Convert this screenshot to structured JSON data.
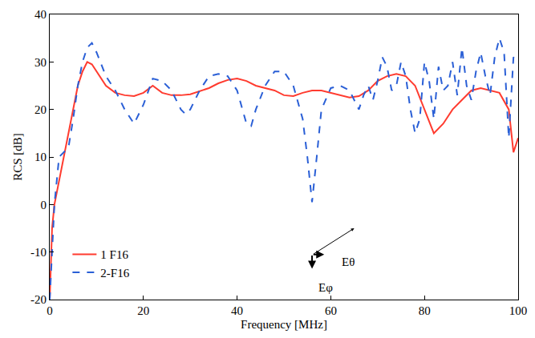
{
  "chart_data": {
    "type": "line",
    "x_label": "Frequency [MHz]",
    "y_label": "RCS [dB]",
    "xlim": [
      0,
      100
    ],
    "xticks": [
      0,
      20,
      40,
      60,
      80,
      100
    ],
    "ylim": [
      -20,
      40
    ],
    "yticks": [
      -20,
      -10,
      0,
      10,
      20,
      30,
      40
    ],
    "grid": false,
    "legend": "lower left",
    "annotations": [
      {
        "text": "Eθ",
        "x": 62,
        "y": -12
      },
      {
        "text": "Eφ",
        "x": 57,
        "y": -17.5
      }
    ],
    "series": [
      {
        "name": "1 F16",
        "color": "#ff3b2f",
        "line_style": "solid",
        "x": [
          0,
          0.5,
          1,
          2,
          3,
          4,
          5,
          6,
          7,
          8,
          9,
          10,
          12,
          14,
          16,
          18,
          20,
          22,
          24,
          26,
          28,
          30,
          32,
          34,
          36,
          38,
          40,
          42,
          44,
          46,
          48,
          50,
          52,
          54,
          56,
          58,
          60,
          62,
          64,
          66,
          68,
          70,
          72,
          74,
          76,
          78,
          80,
          82,
          84,
          86,
          88,
          90,
          92,
          94,
          96,
          98,
          99,
          100
        ],
        "values": [
          -20,
          -5,
          0,
          5,
          10,
          15,
          20,
          25,
          28,
          30,
          29.5,
          28,
          25,
          23.5,
          23,
          22.8,
          23.5,
          25,
          23.5,
          23,
          23,
          23.2,
          23.8,
          24.5,
          25.5,
          26.2,
          26.5,
          26,
          25,
          24.5,
          24,
          23,
          22.8,
          23.5,
          24,
          24,
          23.5,
          23,
          22.5,
          22.8,
          24,
          26,
          27,
          27.5,
          27,
          25,
          20,
          15,
          17,
          20,
          22,
          24,
          24.5,
          24,
          23.5,
          20,
          11,
          14
        ]
      },
      {
        "name": "2-F16",
        "color": "#2a5fd6",
        "line_style": "dash",
        "x": [
          0,
          1,
          2,
          3,
          4,
          5,
          6,
          7,
          8,
          9,
          10,
          12,
          14,
          16,
          18,
          20,
          22,
          24,
          26,
          28,
          29,
          30,
          32,
          34,
          36,
          38,
          40,
          42,
          43,
          44,
          46,
          48,
          50,
          52,
          54,
          55,
          56,
          57,
          58,
          60,
          62,
          64,
          66,
          67,
          68,
          69,
          70,
          71,
          72,
          73,
          74,
          75,
          76,
          77,
          78,
          79,
          80,
          81,
          82,
          83,
          84,
          85,
          86,
          87,
          88,
          89,
          90,
          91,
          92,
          93,
          94,
          95,
          96,
          97,
          98,
          99,
          100
        ],
        "values": [
          -20,
          0,
          10,
          11,
          12,
          18,
          25,
          30,
          33,
          34,
          32,
          27,
          24,
          20,
          17,
          21,
          26.5,
          26,
          24,
          20,
          19,
          20,
          24,
          27,
          27.5,
          27,
          24,
          17,
          16.5,
          20,
          25,
          28,
          28,
          25,
          18,
          10,
          0.5,
          10,
          20,
          24.5,
          25,
          24,
          20,
          23,
          25,
          22,
          26,
          31,
          29,
          24,
          25,
          30,
          27,
          20,
          15,
          18,
          30,
          26,
          18,
          29,
          24,
          25,
          30,
          23,
          33,
          25,
          22,
          28,
          32,
          27,
          23,
          31,
          35,
          32,
          14,
          31,
          30
        ]
      }
    ]
  }
}
